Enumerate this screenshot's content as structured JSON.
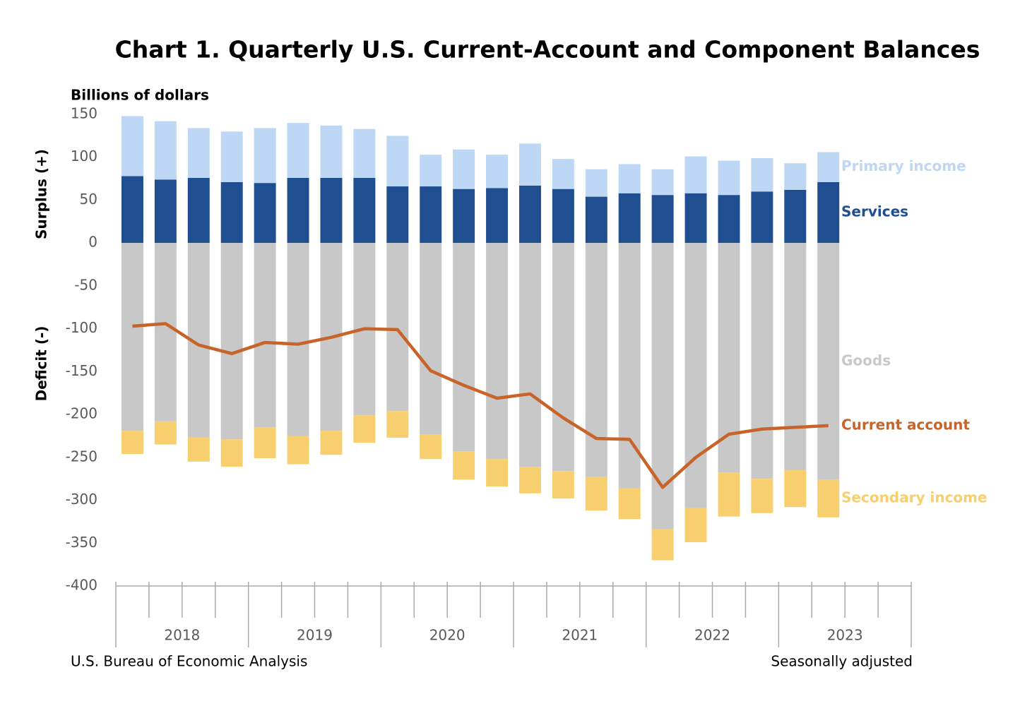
{
  "chart_data": {
    "type": "bar",
    "title": "Chart 1. Quarterly U.S. Current-Account and Component Balances",
    "y_unit_label": "Billions of dollars",
    "y_pos_label": "Surplus (+)",
    "y_neg_label": "Deficit (-)",
    "source": "U.S. Bureau of Economic Analysis",
    "note": "Seasonally adjusted",
    "x_groups": [
      "2018",
      "2019",
      "2020",
      "2021",
      "2022",
      "2023"
    ],
    "categories": [
      null,
      null,
      null,
      null,
      null,
      null,
      null,
      null,
      null,
      null,
      null,
      null,
      null,
      null,
      null,
      null,
      null,
      null,
      null,
      null,
      null,
      null
    ],
    "ylim": [
      -400,
      150
    ],
    "yticks": [
      150,
      100,
      50,
      0,
      -50,
      -100,
      -150,
      -200,
      -250,
      -300,
      -350,
      -400
    ],
    "grid": false,
    "series": [
      {
        "name": "Services",
        "type": "bar",
        "color": "#1f4e91",
        "values": [
          78,
          74,
          76,
          71,
          70,
          76,
          76,
          76,
          66,
          66,
          63,
          64,
          67,
          63,
          54,
          58,
          56,
          58,
          56,
          60,
          62,
          71
        ]
      },
      {
        "name": "Primary income",
        "type": "bar",
        "color": "#bdd7f5",
        "values": [
          70,
          68,
          58,
          59,
          64,
          64,
          61,
          57,
          59,
          37,
          46,
          39,
          49,
          35,
          32,
          34,
          30,
          43,
          40,
          39,
          31,
          35
        ]
      },
      {
        "name": "Goods",
        "type": "bar",
        "color": "#c8c8c8",
        "values": [
          -219,
          -208,
          -227,
          -229,
          -215,
          -225,
          -219,
          -201,
          -196,
          -223,
          -243,
          -252,
          -261,
          -266,
          -273,
          -286,
          -334,
          -309,
          -268,
          -275,
          -265,
          -276
        ]
      },
      {
        "name": "Secondary income",
        "type": "bar",
        "color": "#f7cf6e",
        "values": [
          -27,
          -27,
          -28,
          -32,
          -36,
          -33,
          -28,
          -32,
          -31,
          -29,
          -33,
          -32,
          -31,
          -32,
          -39,
          -36,
          -36,
          -40,
          -51,
          -40,
          -43,
          -44
        ]
      },
      {
        "name": "Current account",
        "type": "line",
        "color": "#c8642a",
        "values": [
          -97,
          -94,
          -119,
          -129,
          -116,
          -118,
          -110,
          -100,
          -101,
          -149,
          -166,
          -181,
          -176,
          -204,
          -228,
          -229,
          -285,
          -250,
          -223,
          -217,
          -215,
          -213
        ]
      }
    ]
  }
}
